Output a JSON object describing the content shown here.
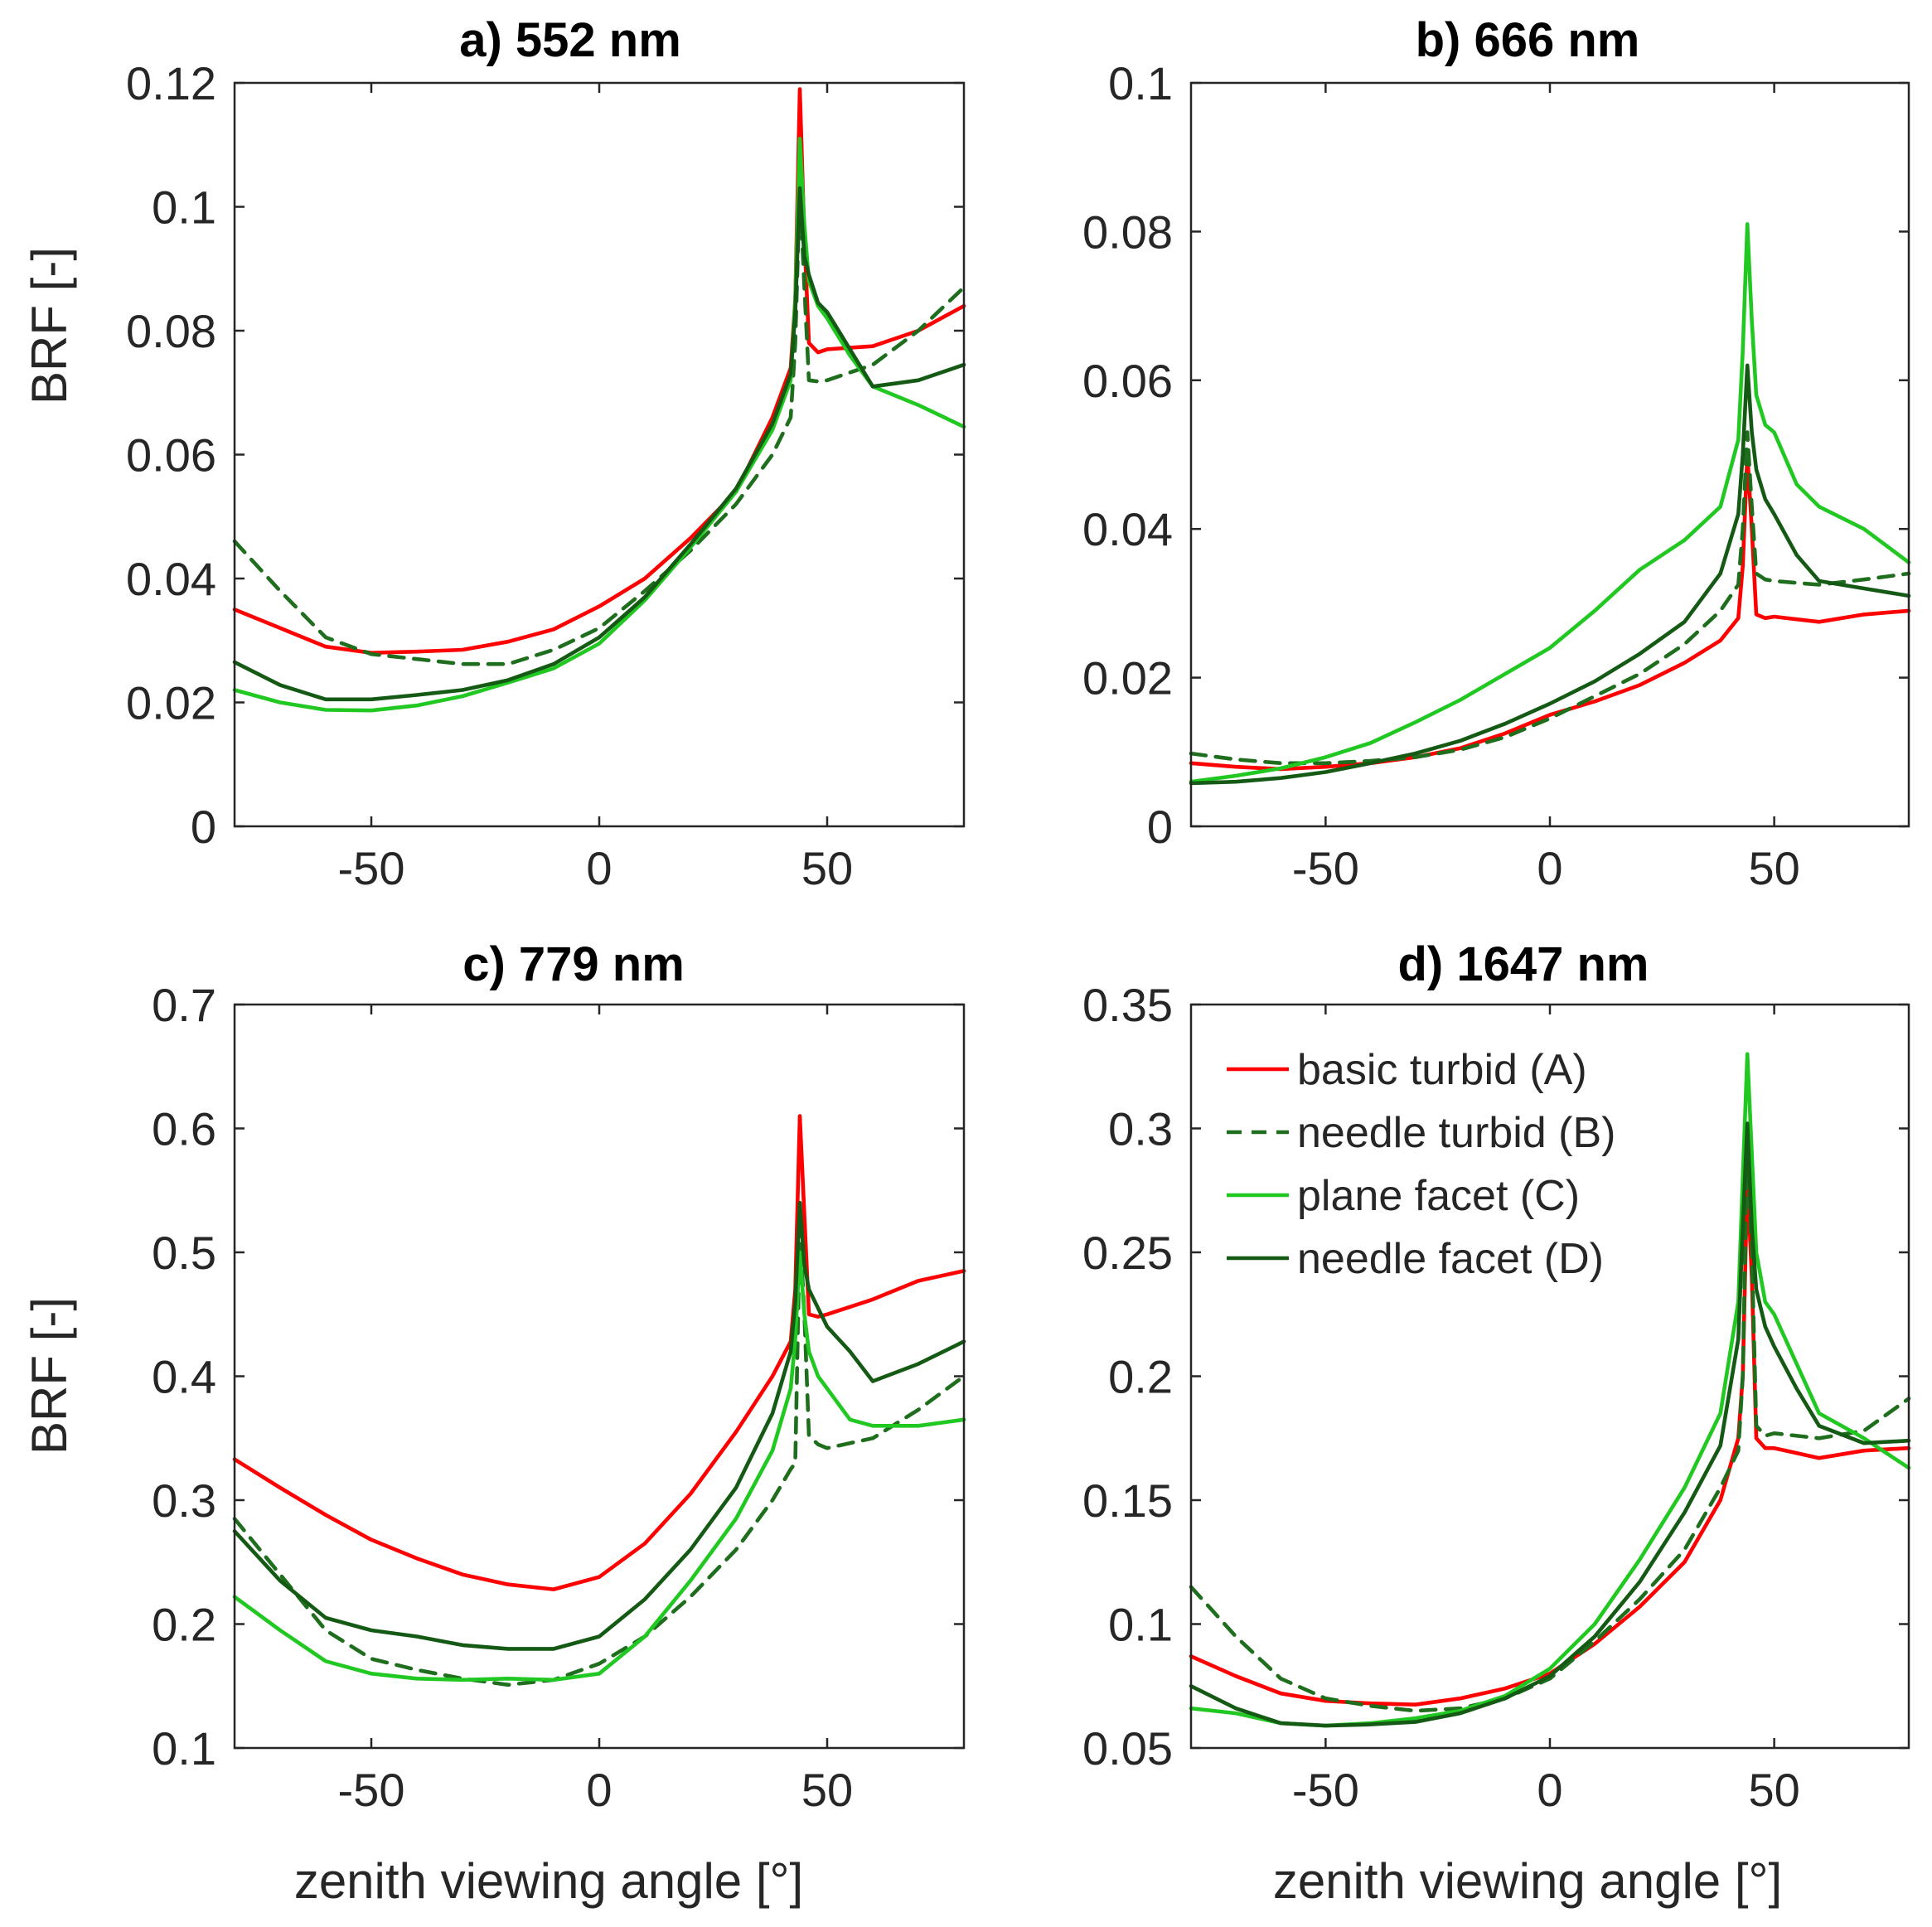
{
  "figure": {
    "x_label": "zenith viewing angle [°]",
    "y_label": "BRF [-]",
    "legend": [
      {
        "key": "A",
        "label": "basic turbid (A)",
        "color": "#ff0000",
        "dashed": false
      },
      {
        "key": "B",
        "label": "needle turbid (B)",
        "color": "#1e6e1e",
        "dashed": true
      },
      {
        "key": "C",
        "label": "plane facet (C)",
        "color": "#22c822",
        "dashed": false
      },
      {
        "key": "D",
        "label": "needle facet (D)",
        "color": "#145a14",
        "dashed": false
      }
    ]
  },
  "chart_data": [
    {
      "type": "line",
      "title": "a) 552 nm",
      "xlabel": "",
      "ylabel": "BRF [-]",
      "xlim": [
        -80,
        80
      ],
      "ylim": [
        0,
        0.12
      ],
      "xticks": [
        -50,
        0,
        50
      ],
      "xtick_labels": [
        "-50",
        "0",
        "50"
      ],
      "yticks": [
        0,
        0.02,
        0.04,
        0.06,
        0.08,
        0.1,
        0.12
      ],
      "ytick_labels": [
        "0",
        "0.02",
        "0.04",
        "0.06",
        "0.08",
        "0.1",
        "0.12"
      ],
      "series": [
        {
          "name": "basic turbid (A)",
          "x": [
            -80,
            -70,
            -60,
            -50,
            -40,
            -30,
            -20,
            -10,
            0,
            10,
            20,
            30,
            38,
            42,
            43,
            44,
            45,
            46,
            48,
            50,
            60,
            70,
            80
          ],
          "y": [
            0.035,
            0.032,
            0.029,
            0.028,
            0.0282,
            0.0285,
            0.0298,
            0.0318,
            0.0355,
            0.04,
            0.0465,
            0.054,
            0.066,
            0.074,
            0.085,
            0.119,
            0.095,
            0.078,
            0.0765,
            0.077,
            0.0775,
            0.08,
            0.084
          ]
        },
        {
          "name": "needle turbid (B)",
          "x": [
            -80,
            -70,
            -60,
            -50,
            -40,
            -30,
            -20,
            -10,
            0,
            10,
            20,
            30,
            38,
            42,
            43,
            44,
            45,
            46,
            48,
            50,
            60,
            70,
            80
          ],
          "y": [
            0.046,
            0.038,
            0.0305,
            0.0278,
            0.027,
            0.0262,
            0.0262,
            0.0285,
            0.032,
            0.038,
            0.0445,
            0.052,
            0.06,
            0.066,
            0.078,
            0.103,
            0.087,
            0.072,
            0.0718,
            0.072,
            0.0745,
            0.08,
            0.087
          ]
        },
        {
          "name": "plane facet (C)",
          "x": [
            -80,
            -70,
            -60,
            -50,
            -40,
            -30,
            -20,
            -10,
            0,
            10,
            20,
            30,
            38,
            42,
            43,
            44,
            45,
            46,
            48,
            50,
            55,
            60,
            70,
            80
          ],
          "y": [
            0.022,
            0.02,
            0.0188,
            0.0187,
            0.0195,
            0.021,
            0.0232,
            0.0255,
            0.0295,
            0.0365,
            0.045,
            0.054,
            0.064,
            0.072,
            0.085,
            0.111,
            0.097,
            0.088,
            0.084,
            0.082,
            0.076,
            0.071,
            0.068,
            0.0645
          ]
        },
        {
          "name": "needle facet (D)",
          "x": [
            -80,
            -70,
            -60,
            -50,
            -40,
            -30,
            -20,
            -10,
            0,
            10,
            20,
            30,
            38,
            42,
            43,
            44,
            45,
            46,
            48,
            50,
            55,
            60,
            70,
            80
          ],
          "y": [
            0.0265,
            0.0228,
            0.0205,
            0.0205,
            0.0212,
            0.022,
            0.0236,
            0.0262,
            0.0305,
            0.037,
            0.0455,
            0.0545,
            0.065,
            0.073,
            0.083,
            0.103,
            0.092,
            0.089,
            0.0845,
            0.083,
            0.077,
            0.071,
            0.072,
            0.0745
          ]
        }
      ]
    },
    {
      "type": "line",
      "title": "b) 666 nm",
      "xlabel": "",
      "ylabel": "",
      "xlim": [
        -80,
        80
      ],
      "ylim": [
        0,
        0.1
      ],
      "xticks": [
        -50,
        0,
        50
      ],
      "xtick_labels": [
        "-50",
        "0",
        "50"
      ],
      "yticks": [
        0,
        0.02,
        0.04,
        0.06,
        0.08,
        0.1
      ],
      "ytick_labels": [
        "0",
        "0.02",
        "0.04",
        "0.06",
        "0.08",
        "0.1"
      ],
      "series": [
        {
          "name": "basic turbid (A)",
          "x": [
            -80,
            -70,
            -60,
            -50,
            -40,
            -30,
            -20,
            -10,
            0,
            10,
            20,
            30,
            38,
            42,
            43,
            44,
            45,
            46,
            48,
            50,
            60,
            70,
            80
          ],
          "y": [
            0.0085,
            0.008,
            0.0077,
            0.008,
            0.0085,
            0.0093,
            0.0105,
            0.0125,
            0.015,
            0.0168,
            0.019,
            0.022,
            0.025,
            0.028,
            0.035,
            0.05,
            0.04,
            0.0285,
            0.028,
            0.0282,
            0.0275,
            0.0285,
            0.029
          ]
        },
        {
          "name": "needle turbid (B)",
          "x": [
            -80,
            -70,
            -60,
            -50,
            -40,
            -30,
            -20,
            -10,
            0,
            10,
            20,
            30,
            38,
            42,
            43,
            44,
            45,
            46,
            48,
            50,
            60,
            70,
            80
          ],
          "y": [
            0.0098,
            0.009,
            0.0085,
            0.0085,
            0.0088,
            0.0093,
            0.0103,
            0.012,
            0.0145,
            0.0175,
            0.0205,
            0.0245,
            0.029,
            0.0325,
            0.04,
            0.053,
            0.043,
            0.034,
            0.0332,
            0.033,
            0.0325,
            0.0332,
            0.034
          ]
        },
        {
          "name": "plane facet (C)",
          "x": [
            -80,
            -70,
            -60,
            -50,
            -40,
            -30,
            -20,
            -10,
            0,
            10,
            20,
            30,
            38,
            42,
            43,
            44,
            45,
            46,
            48,
            50,
            55,
            60,
            70,
            80
          ],
          "y": [
            0.006,
            0.0068,
            0.0078,
            0.0093,
            0.0112,
            0.014,
            0.017,
            0.0205,
            0.024,
            0.029,
            0.0345,
            0.0385,
            0.043,
            0.052,
            0.064,
            0.081,
            0.068,
            0.058,
            0.054,
            0.053,
            0.046,
            0.043,
            0.04,
            0.0355
          ]
        },
        {
          "name": "needle facet (D)",
          "x": [
            -80,
            -70,
            -60,
            -50,
            -40,
            -30,
            -20,
            -10,
            0,
            10,
            20,
            30,
            38,
            42,
            43,
            44,
            45,
            46,
            48,
            50,
            55,
            60,
            70,
            80
          ],
          "y": [
            0.0058,
            0.006,
            0.0065,
            0.0073,
            0.0085,
            0.0098,
            0.0115,
            0.0138,
            0.0165,
            0.0195,
            0.0232,
            0.0275,
            0.034,
            0.042,
            0.05,
            0.062,
            0.053,
            0.048,
            0.044,
            0.042,
            0.0365,
            0.033,
            0.032,
            0.031
          ]
        }
      ]
    },
    {
      "type": "line",
      "title": "c) 779 nm",
      "xlabel": "zenith viewing angle [°]",
      "ylabel": "BRF [-]",
      "xlim": [
        -80,
        80
      ],
      "ylim": [
        0.1,
        0.7
      ],
      "xticks": [
        -50,
        0,
        50
      ],
      "xtick_labels": [
        "-50",
        "0",
        "50"
      ],
      "yticks": [
        0.1,
        0.2,
        0.3,
        0.4,
        0.5,
        0.6,
        0.7
      ],
      "ytick_labels": [
        "0.1",
        "0.2",
        "0.3",
        "0.4",
        "0.5",
        "0.6",
        "0.7"
      ],
      "series": [
        {
          "name": "basic turbid (A)",
          "x": [
            -80,
            -70,
            -60,
            -50,
            -40,
            -30,
            -20,
            -10,
            0,
            10,
            20,
            30,
            38,
            42,
            43,
            44,
            45,
            46,
            48,
            50,
            60,
            70,
            80
          ],
          "y": [
            0.333,
            0.31,
            0.288,
            0.268,
            0.253,
            0.24,
            0.232,
            0.228,
            0.238,
            0.265,
            0.305,
            0.355,
            0.4,
            0.428,
            0.47,
            0.61,
            0.53,
            0.45,
            0.448,
            0.45,
            0.462,
            0.477,
            0.485
          ]
        },
        {
          "name": "needle turbid (B)",
          "x": [
            -80,
            -70,
            -60,
            -50,
            -40,
            -30,
            -20,
            -10,
            0,
            10,
            20,
            30,
            38,
            42,
            43,
            44,
            45,
            46,
            48,
            50,
            60,
            70,
            80
          ],
          "y": [
            0.285,
            0.24,
            0.195,
            0.172,
            0.163,
            0.156,
            0.151,
            0.155,
            0.168,
            0.19,
            0.222,
            0.26,
            0.3,
            0.325,
            0.33,
            0.52,
            0.45,
            0.352,
            0.345,
            0.342,
            0.35,
            0.373,
            0.4
          ]
        },
        {
          "name": "plane facet (C)",
          "x": [
            -80,
            -70,
            -60,
            -50,
            -40,
            -30,
            -20,
            -10,
            0,
            10,
            20,
            30,
            38,
            42,
            43,
            44,
            45,
            46,
            48,
            50,
            55,
            60,
            70,
            80
          ],
          "y": [
            0.222,
            0.195,
            0.17,
            0.16,
            0.156,
            0.155,
            0.156,
            0.155,
            0.16,
            0.19,
            0.235,
            0.285,
            0.34,
            0.39,
            0.43,
            0.5,
            0.45,
            0.42,
            0.4,
            0.39,
            0.365,
            0.36,
            0.36,
            0.365
          ]
        },
        {
          "name": "needle facet (D)",
          "x": [
            -80,
            -70,
            -60,
            -50,
            -40,
            -30,
            -20,
            -10,
            0,
            10,
            20,
            30,
            38,
            42,
            43,
            44,
            45,
            46,
            48,
            50,
            55,
            60,
            70,
            80
          ],
          "y": [
            0.275,
            0.235,
            0.205,
            0.195,
            0.19,
            0.183,
            0.18,
            0.18,
            0.19,
            0.22,
            0.26,
            0.31,
            0.37,
            0.42,
            0.46,
            0.54,
            0.49,
            0.47,
            0.455,
            0.44,
            0.42,
            0.396,
            0.41,
            0.428
          ]
        }
      ]
    },
    {
      "type": "line",
      "title": "d) 1647 nm",
      "xlabel": "zenith viewing angle [°]",
      "ylabel": "",
      "xlim": [
        -80,
        80
      ],
      "ylim": [
        0.05,
        0.35
      ],
      "xticks": [
        -50,
        0,
        50
      ],
      "xtick_labels": [
        "-50",
        "0",
        "50"
      ],
      "yticks": [
        0.05,
        0.1,
        0.15,
        0.2,
        0.25,
        0.3,
        0.35
      ],
      "ytick_labels": [
        "0.05",
        "0.1",
        "0.15",
        "0.2",
        "0.25",
        "0.3",
        "0.35"
      ],
      "series": [
        {
          "name": "basic turbid (A)",
          "x": [
            -80,
            -70,
            -60,
            -50,
            -40,
            -30,
            -20,
            -10,
            0,
            10,
            20,
            30,
            38,
            42,
            43,
            44,
            45,
            46,
            48,
            50,
            60,
            70,
            80
          ],
          "y": [
            0.087,
            0.079,
            0.072,
            0.069,
            0.068,
            0.0675,
            0.07,
            0.074,
            0.08,
            0.092,
            0.107,
            0.125,
            0.15,
            0.175,
            0.2,
            0.28,
            0.24,
            0.175,
            0.171,
            0.171,
            0.167,
            0.17,
            0.171
          ]
        },
        {
          "name": "needle turbid (B)",
          "x": [
            -80,
            -70,
            -60,
            -50,
            -40,
            -30,
            -20,
            -10,
            0,
            10,
            20,
            30,
            38,
            42,
            43,
            44,
            45,
            46,
            48,
            50,
            60,
            70,
            80
          ],
          "y": [
            0.115,
            0.095,
            0.078,
            0.07,
            0.067,
            0.065,
            0.066,
            0.07,
            0.078,
            0.093,
            0.11,
            0.13,
            0.155,
            0.17,
            0.2,
            0.295,
            0.25,
            0.18,
            0.176,
            0.177,
            0.175,
            0.178,
            0.191
          ]
        },
        {
          "name": "plane facet (C)",
          "x": [
            -80,
            -70,
            -60,
            -50,
            -40,
            -30,
            -20,
            -10,
            0,
            10,
            20,
            30,
            38,
            42,
            43,
            44,
            45,
            46,
            48,
            50,
            55,
            60,
            70,
            80
          ],
          "y": [
            0.066,
            0.064,
            0.06,
            0.059,
            0.06,
            0.062,
            0.065,
            0.071,
            0.082,
            0.1,
            0.126,
            0.155,
            0.185,
            0.23,
            0.28,
            0.33,
            0.29,
            0.25,
            0.23,
            0.225,
            0.205,
            0.185,
            0.175,
            0.163
          ]
        },
        {
          "name": "needle facet (D)",
          "x": [
            -80,
            -70,
            -60,
            -50,
            -40,
            -30,
            -20,
            -10,
            0,
            10,
            20,
            30,
            38,
            42,
            43,
            44,
            45,
            46,
            48,
            50,
            55,
            60,
            70,
            80
          ],
          "y": [
            0.075,
            0.066,
            0.06,
            0.059,
            0.0595,
            0.0605,
            0.064,
            0.07,
            0.079,
            0.095,
            0.117,
            0.145,
            0.172,
            0.215,
            0.26,
            0.302,
            0.26,
            0.235,
            0.22,
            0.212,
            0.195,
            0.18,
            0.173,
            0.174
          ]
        }
      ]
    }
  ]
}
